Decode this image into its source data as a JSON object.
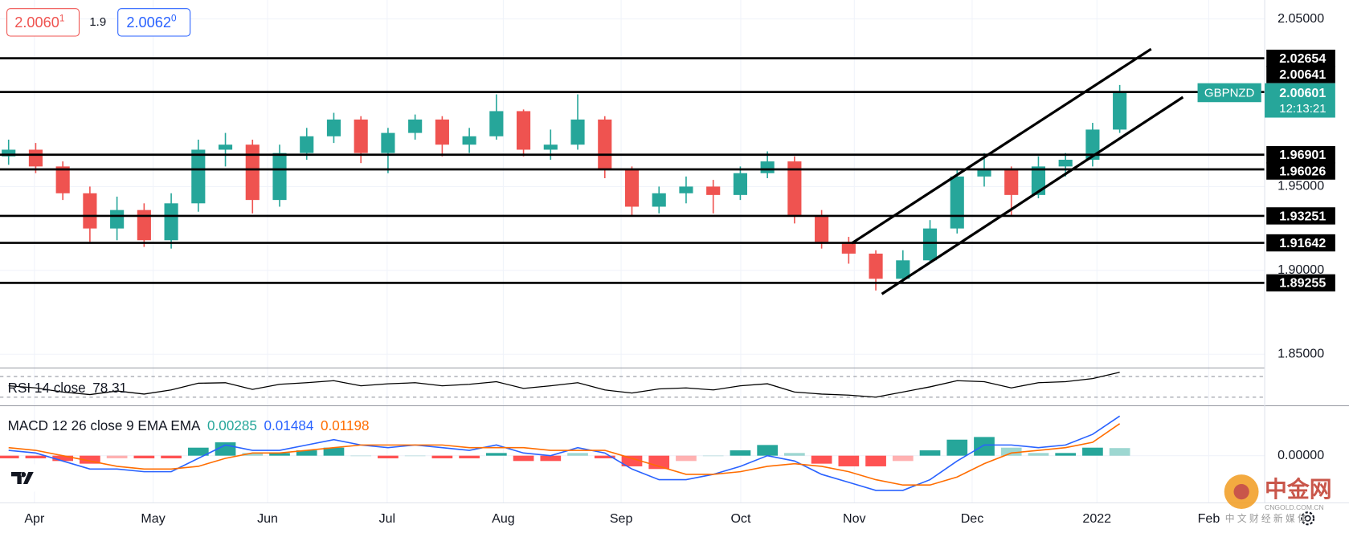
{
  "chart_data": {
    "type": "candlestick",
    "symbol": "GBPNZD",
    "countdown": "12:13:21",
    "quote": {
      "bid": "2.0060",
      "bid_pip": "1",
      "spread": "1.9",
      "ask": "2.0062",
      "ask_pip": "0"
    },
    "up_color": "#26a69a",
    "down_color": "#ef5350",
    "open": [
      1.968,
      1.972,
      1.962,
      1.946,
      1.925,
      1.936,
      1.918,
      1.94,
      1.972,
      1.975,
      1.942,
      1.97,
      1.98,
      1.99,
      1.97,
      1.982,
      1.99,
      1.975,
      1.98,
      1.995,
      1.972,
      1.975,
      1.99,
      1.96,
      1.938,
      1.946,
      1.95,
      1.945,
      1.958,
      1.965,
      1.932,
      1.917,
      1.91,
      1.895,
      1.906,
      1.925,
      1.956,
      1.96,
      1.945,
      1.962,
      1.966,
      1.984
    ],
    "high": [
      1.978,
      1.976,
      1.965,
      1.95,
      1.944,
      1.94,
      1.946,
      1.978,
      1.982,
      1.978,
      1.975,
      1.985,
      1.994,
      1.992,
      1.985,
      1.993,
      1.992,
      1.985,
      2.005,
      1.996,
      1.984,
      2.005,
      1.992,
      1.962,
      1.95,
      1.956,
      1.954,
      1.962,
      1.971,
      1.968,
      1.936,
      1.92,
      1.912,
      1.912,
      1.93,
      1.96,
      1.97,
      1.962,
      1.968,
      1.97,
      1.988,
      2.0106
    ],
    "low": [
      1.963,
      1.958,
      1.942,
      1.917,
      1.918,
      1.914,
      1.913,
      1.935,
      1.962,
      1.934,
      1.938,
      1.966,
      1.976,
      1.964,
      1.958,
      1.978,
      1.968,
      1.97,
      1.978,
      1.968,
      1.966,
      1.972,
      1.955,
      1.932,
      1.934,
      1.94,
      1.934,
      1.942,
      1.955,
      1.928,
      1.913,
      1.904,
      1.888,
      1.892,
      1.904,
      1.922,
      1.95,
      1.932,
      1.943,
      1.956,
      1.962,
      1.982
    ],
    "close": [
      1.972,
      1.962,
      1.946,
      1.925,
      1.936,
      1.918,
      1.94,
      1.972,
      1.975,
      1.942,
      1.97,
      1.98,
      1.99,
      1.97,
      1.982,
      1.99,
      1.975,
      1.98,
      1.995,
      1.972,
      1.975,
      1.99,
      1.96,
      1.938,
      1.946,
      1.95,
      1.945,
      1.958,
      1.965,
      1.932,
      1.917,
      1.91,
      1.895,
      1.906,
      1.925,
      1.956,
      1.96,
      1.945,
      1.962,
      1.966,
      1.984,
      2.00601
    ],
    "ylim": [
      1.8418,
      2.0613
    ],
    "yticks": [
      {
        "value": 2.05,
        "label": "2.05000"
      },
      {
        "value": 1.95,
        "label": "1.95000"
      },
      {
        "value": 1.9,
        "label": "1.90000"
      },
      {
        "value": 1.85,
        "label": "1.85000"
      }
    ],
    "levels": [
      2.02654,
      2.00641,
      1.96901,
      1.96026,
      1.93251,
      1.91642,
      1.89255
    ],
    "level_color": "#000000",
    "x_labels": [
      "Apr",
      "May",
      "Jun",
      "Jul",
      "Aug",
      "Sep",
      "Oct",
      "Nov",
      "Dec",
      "2022",
      "Feb"
    ],
    "rsi": {
      "title": "RSI 14 close",
      "color": "#000000",
      "values": [
        52,
        48,
        40,
        35,
        42,
        36,
        44,
        57,
        58,
        45,
        55,
        58,
        62,
        52,
        56,
        58,
        52,
        55,
        60,
        47,
        52,
        58,
        44,
        38,
        46,
        48,
        44,
        52,
        56,
        40,
        36,
        34,
        30,
        40,
        50,
        62,
        60,
        48,
        58,
        60,
        66,
        78.31
      ],
      "ylim": [
        13.33,
        86.67
      ],
      "bands": [
        70,
        30
      ]
    },
    "macd": {
      "title": "MACD 12 26 close 9 EMA EMA",
      "macd_color": "#2962ff",
      "signal_color": "#ff6d00",
      "positive_color": "#26a69a",
      "negative_color": "#ff5252",
      "histogram": [
        -0.001,
        -0.001,
        -0.002,
        -0.003,
        -0.001,
        -0.001,
        -0.001,
        0.003,
        0.005,
        0.001,
        0.001,
        0.002,
        0.003,
        0.0,
        -0.001,
        0.0,
        -0.001,
        -0.001,
        0.001,
        -0.002,
        -0.002,
        0.001,
        -0.001,
        -0.004,
        -0.005,
        -0.002,
        0.0,
        0.002,
        0.004,
        0.001,
        -0.003,
        -0.004,
        -0.004,
        -0.002,
        0.002,
        0.006,
        0.007,
        0.003,
        0.001,
        0.001,
        0.003,
        0.00285
      ],
      "macd": [
        0.002,
        0.001,
        -0.002,
        -0.005,
        -0.005,
        -0.006,
        -0.006,
        -0.001,
        0.004,
        0.002,
        0.002,
        0.004,
        0.006,
        0.004,
        0.003,
        0.004,
        0.003,
        0.002,
        0.004,
        0.001,
        0.0,
        0.003,
        0.001,
        -0.005,
        -0.009,
        -0.009,
        -0.007,
        -0.004,
        0.0,
        -0.002,
        -0.007,
        -0.01,
        -0.013,
        -0.013,
        -0.009,
        -0.002,
        0.004,
        0.004,
        0.003,
        0.004,
        0.008,
        0.01484
      ],
      "signal": [
        0.003,
        0.002,
        0.0,
        -0.002,
        -0.004,
        -0.005,
        -0.005,
        -0.004,
        -0.001,
        0.001,
        0.001,
        0.002,
        0.003,
        0.004,
        0.004,
        0.004,
        0.004,
        0.003,
        0.003,
        0.003,
        0.002,
        0.002,
        0.002,
        -0.001,
        -0.004,
        -0.007,
        -0.007,
        -0.006,
        -0.004,
        -0.003,
        -0.004,
        -0.006,
        -0.009,
        -0.011,
        -0.011,
        -0.008,
        -0.003,
        0.001,
        0.002,
        0.003,
        0.005,
        0.01198
      ],
      "ylim": [
        -0.0177,
        0.0187
      ],
      "yticks": [
        {
          "value": 0,
          "label": "0.00000"
        }
      ]
    },
    "watermark": {
      "name": "中金网",
      "site": "CNGOLD.COM.CN",
      "slogan": "中 文 财 经 新 媒 体"
    }
  }
}
